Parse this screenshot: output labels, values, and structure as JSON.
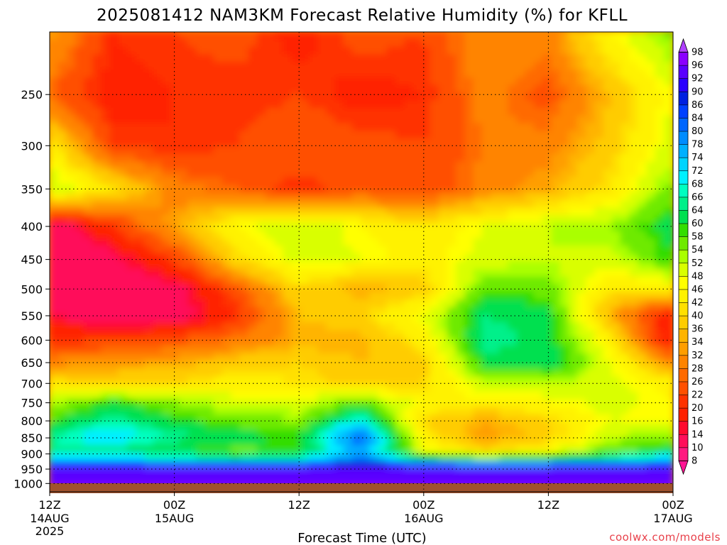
{
  "title": "2025081412 NAM3KM Forecast Relative Humidity (%) for KFLL",
  "credit": "coolwx.com/models",
  "chart_data": {
    "type": "heatmap",
    "title": "2025081412 NAM3KM Forecast Relative Humidity (%) for KFLL",
    "xlabel": "Forecast Time (UTC)",
    "ylabel": "",
    "x_range_hours": [
      0,
      60
    ],
    "y_axis": {
      "scale": "log-pressure",
      "ylim_hpa": [
        1030,
        200
      ],
      "ticks": [
        250,
        300,
        350,
        400,
        450,
        500,
        550,
        600,
        650,
        700,
        750,
        800,
        850,
        900,
        950,
        1000
      ]
    },
    "x_ticks": [
      {
        "hour": 0,
        "l1": "12Z",
        "l2": "14AUG",
        "l3": "2025"
      },
      {
        "hour": 12,
        "l1": "00Z",
        "l2": "15AUG",
        "l3": ""
      },
      {
        "hour": 24,
        "l1": "12Z",
        "l2": "",
        "l3": ""
      },
      {
        "hour": 36,
        "l1": "00Z",
        "l2": "16AUG",
        "l3": ""
      },
      {
        "hour": 48,
        "l1": "12Z",
        "l2": "",
        "l3": ""
      },
      {
        "hour": 60,
        "l1": "00Z",
        "l2": "17AUG",
        "l3": ""
      }
    ],
    "grid": true,
    "ground_color": "#a0522d",
    "colorbar": {
      "levels": [
        8,
        10,
        14,
        16,
        20,
        22,
        26,
        28,
        32,
        34,
        36,
        40,
        42,
        46,
        48,
        52,
        54,
        58,
        60,
        64,
        66,
        68,
        72,
        74,
        78,
        80,
        84,
        86,
        90,
        92,
        96,
        98
      ],
      "colors": [
        "#ff1493",
        "#ff1a80",
        "#ff0f5a",
        "#ff0a2e",
        "#ff2200",
        "#ff3300",
        "#ff5000",
        "#ff6a00",
        "#ff8400",
        "#ff9e00",
        "#ffb400",
        "#ffcc00",
        "#ffe000",
        "#fff200",
        "#ffff00",
        "#d9ff00",
        "#aaff00",
        "#6eea00",
        "#33dd00",
        "#00e050",
        "#00f08a",
        "#00ffc0",
        "#00f0ff",
        "#00d4ff",
        "#00b0ff",
        "#008cff",
        "#0066ff",
        "#0040ff",
        "#0020e0",
        "#2a00ff",
        "#5a00ff",
        "#8a00ff",
        "#b040ff"
      ]
    },
    "rh_grid_points": {
      "description": "Approximate relative humidity (%) at pressure levels (hPa) vs forecast hour",
      "hours": [
        0,
        6,
        12,
        18,
        24,
        30,
        36,
        42,
        48,
        54,
        60
      ],
      "levels_hpa": [
        200,
        250,
        300,
        350,
        400,
        450,
        500,
        550,
        600,
        650,
        700,
        750,
        800,
        850,
        900,
        950,
        1000
      ],
      "values": [
        [
          34,
          20,
          22,
          24,
          18,
          24,
          22,
          32,
          30,
          46,
          56
        ],
        [
          26,
          18,
          20,
          20,
          22,
          18,
          20,
          30,
          24,
          36,
          48
        ],
        [
          44,
          22,
          20,
          22,
          26,
          24,
          22,
          28,
          30,
          38,
          50
        ],
        [
          52,
          42,
          30,
          26,
          20,
          24,
          22,
          30,
          34,
          42,
          56
        ],
        [
          10,
          20,
          34,
          46,
          52,
          46,
          42,
          48,
          52,
          54,
          62
        ],
        [
          10,
          12,
          22,
          40,
          50,
          48,
          44,
          50,
          52,
          50,
          60
        ],
        [
          10,
          10,
          12,
          24,
          40,
          34,
          38,
          58,
          56,
          42,
          44
        ],
        [
          14,
          10,
          10,
          20,
          36,
          40,
          48,
          64,
          62,
          34,
          16
        ],
        [
          20,
          22,
          24,
          28,
          34,
          34,
          44,
          66,
          62,
          44,
          14
        ],
        [
          30,
          32,
          34,
          38,
          40,
          36,
          38,
          62,
          64,
          48,
          30
        ],
        [
          42,
          40,
          40,
          44,
          42,
          38,
          40,
          52,
          52,
          50,
          44
        ],
        [
          52,
          60,
          54,
          50,
          50,
          56,
          46,
          44,
          46,
          50,
          46
        ],
        [
          58,
          66,
          60,
          56,
          54,
          70,
          40,
          34,
          40,
          48,
          46
        ],
        [
          66,
          72,
          66,
          62,
          60,
          84,
          44,
          32,
          38,
          52,
          56
        ],
        [
          64,
          62,
          60,
          56,
          58,
          76,
          50,
          42,
          48,
          58,
          62
        ],
        [
          92,
          94,
          92,
          92,
          92,
          94,
          94,
          92,
          92,
          92,
          94
        ],
        [
          96,
          96,
          96,
          96,
          96,
          96,
          96,
          96,
          96,
          96,
          96
        ]
      ]
    }
  }
}
